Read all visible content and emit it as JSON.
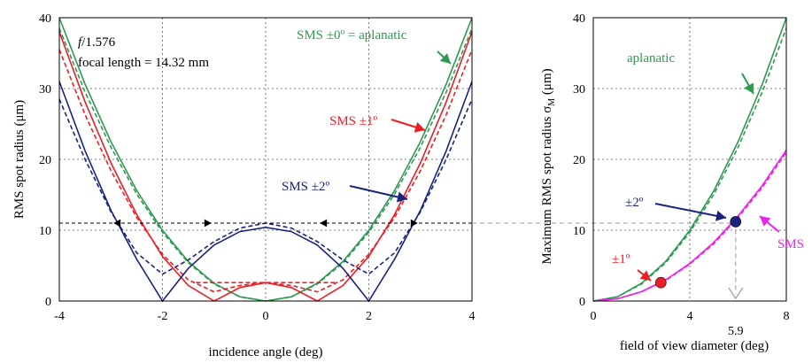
{
  "chart_data": [
    {
      "type": "line",
      "xlabel": "incidence angle (deg)",
      "ylabel": "RMS spot radius (μm)",
      "xlim": [
        -4,
        4
      ],
      "ylim": [
        0,
        40
      ],
      "xticks": [
        "-4",
        "-2",
        "0",
        "2",
        "4"
      ],
      "yticks": [
        "0",
        "10",
        "20",
        "30",
        "40"
      ],
      "grid": true,
      "fnumber_prefix": "f",
      "fnumber_value": "/1.576",
      "focal_length_text": "focal length = 14.32 mm",
      "annotations": [
        {
          "text": "SMS ±0º = aplanatic",
          "color": "#2e9a50"
        },
        {
          "text": "SMS  ±1º",
          "color": "#ee1c24"
        },
        {
          "text": "SMS  ±2º",
          "color": "#1a237e"
        }
      ],
      "colors": {
        "aplanatic": "#2e9a50",
        "sms1": "#ee1c24",
        "sms2": "#1a237e",
        "guide": "#000000"
      },
      "series": [
        {
          "key": "aplanatic",
          "style": "solid",
          "x": [
            -4,
            -3.5,
            -3,
            -2.5,
            -2,
            -1.5,
            -1,
            -0.5,
            0,
            0.5,
            1,
            1.5,
            2,
            2.5,
            3,
            3.5,
            4
          ],
          "y": [
            40,
            30.6,
            22.5,
            15.6,
            10,
            5.6,
            2.5,
            0.6,
            0,
            0.6,
            2.5,
            5.6,
            10,
            15.6,
            22.5,
            30.6,
            40
          ]
        },
        {
          "key": "aplanatic",
          "style": "dashed",
          "x": [
            -4,
            -3.5,
            -3,
            -2.5,
            -2,
            -1.5,
            -1,
            -0.5,
            0,
            0.5,
            1,
            1.5,
            2,
            2.5,
            3,
            3.5,
            4
          ],
          "y": [
            38.5,
            29.5,
            21.7,
            15.1,
            9.7,
            5.4,
            2.4,
            0.6,
            0,
            0.6,
            2.4,
            5.4,
            9.7,
            15.1,
            21.7,
            29.5,
            38.5
          ]
        },
        {
          "key": "sms1",
          "style": "solid",
          "x": [
            -4,
            -3.5,
            -3,
            -2.5,
            -2,
            -1.5,
            -1,
            -0.5,
            0,
            0.5,
            1,
            1.5,
            2,
            2.5,
            3,
            3.5,
            4
          ],
          "y": [
            38,
            28.1,
            19.5,
            12.2,
            6.3,
            2.2,
            0,
            1.9,
            2.6,
            1.9,
            0,
            2.2,
            6.3,
            12.2,
            19.5,
            28.1,
            38
          ]
        },
        {
          "key": "sms1",
          "style": "dashed",
          "x": [
            -4,
            -3.5,
            -3,
            -2.5,
            -2,
            -1.5,
            -1,
            -0.5,
            0,
            0.5,
            1,
            1.5,
            2,
            2.5,
            3,
            3.5,
            4
          ],
          "y": [
            35.5,
            26.3,
            18.4,
            11.8,
            6.6,
            3,
            1.3,
            2.2,
            2.6,
            2.2,
            1.3,
            3,
            6.6,
            11.8,
            18.4,
            26.3,
            35.5
          ]
        },
        {
          "key": "sms2",
          "style": "solid",
          "x": [
            -4,
            -3.5,
            -3,
            -2.5,
            -2,
            -1.5,
            -1,
            -0.5,
            0,
            0.5,
            1,
            1.5,
            2,
            2.5,
            3,
            3.5,
            4
          ],
          "y": [
            31,
            21.2,
            12.8,
            5.9,
            0,
            4.6,
            7.9,
            9.8,
            10.4,
            9.8,
            7.9,
            4.6,
            0,
            5.9,
            12.8,
            21.2,
            31
          ]
        },
        {
          "key": "sms2",
          "style": "dashed",
          "x": [
            -4,
            -3.5,
            -3,
            -2.5,
            -2,
            -1.5,
            -1,
            -0.5,
            0,
            0.5,
            1,
            1.5,
            2,
            2.5,
            3,
            3.5,
            4
          ],
          "y": [
            28.5,
            20,
            12.6,
            6.8,
            3.8,
            5.8,
            8.4,
            10.3,
            11,
            10.3,
            8.4,
            5.8,
            3.8,
            6.8,
            12.6,
            20,
            28.5
          ]
        },
        {
          "key": "guide",
          "style": "dashed",
          "x": [
            -4,
            4
          ],
          "y": [
            11,
            11
          ]
        },
        {
          "key": "sms1",
          "style": "dashed",
          "x": [
            -1.35,
            1.35
          ],
          "y": [
            2.6,
            2.6
          ]
        }
      ]
    },
    {
      "type": "line",
      "xlabel": "field of view diameter (deg)",
      "ylabel_main": "Maximum RMS spot radius σ",
      "ylabel_sub": "M",
      "ylabel_unit": " (μm)",
      "xlim": [
        0,
        8
      ],
      "ylim": [
        0,
        40
      ],
      "xticks": [
        "0",
        "4",
        "8"
      ],
      "yticks": [
        "0",
        "10",
        "20",
        "30",
        "40"
      ],
      "extra_xtick": "5.9",
      "grid": true,
      "annotations": [
        {
          "text": "aplanatic",
          "color": "#2e9a50"
        },
        {
          "text": "±2º",
          "color": "#1a237e"
        },
        {
          "text": "±1º",
          "color": "#ee1c24"
        },
        {
          "text": "SMS",
          "color": "#ee22ee"
        }
      ],
      "colors": {
        "aplanatic": "#2e9a50",
        "sms": "#ee22ee",
        "p1": "#ee1c24",
        "p2": "#1a237e",
        "guide": "#aaaaaa"
      },
      "series": [
        {
          "key": "aplanatic",
          "style": "solid",
          "x": [
            0,
            1,
            2,
            3,
            4,
            5,
            6,
            7,
            8
          ],
          "y": [
            0,
            0.6,
            2.5,
            5.6,
            10,
            15.6,
            22.5,
            30.6,
            40
          ]
        },
        {
          "key": "aplanatic",
          "style": "dashed",
          "x": [
            0,
            1,
            2,
            3,
            4,
            5,
            6,
            7,
            8
          ],
          "y": [
            0,
            0.6,
            2.4,
            5.4,
            9.7,
            15.1,
            21.7,
            29.5,
            38.5
          ]
        },
        {
          "key": "sms",
          "style": "solid",
          "x": [
            0,
            1,
            2,
            3,
            4,
            5,
            6,
            7,
            8
          ],
          "y": [
            0,
            0.33,
            1.33,
            3,
            5.3,
            8.3,
            12,
            16.3,
            21.3
          ]
        },
        {
          "key": "sms",
          "style": "dashed",
          "x": [
            0,
            1,
            2,
            3,
            4,
            5,
            6,
            7,
            8
          ],
          "y": [
            0,
            0.32,
            1.3,
            2.9,
            5.2,
            8.1,
            11.8,
            16,
            21
          ]
        }
      ],
      "points": [
        {
          "key": "p1",
          "x": 2.8,
          "y": 2.6
        },
        {
          "key": "p2",
          "x": 5.9,
          "y": 11.2
        }
      ]
    }
  ]
}
